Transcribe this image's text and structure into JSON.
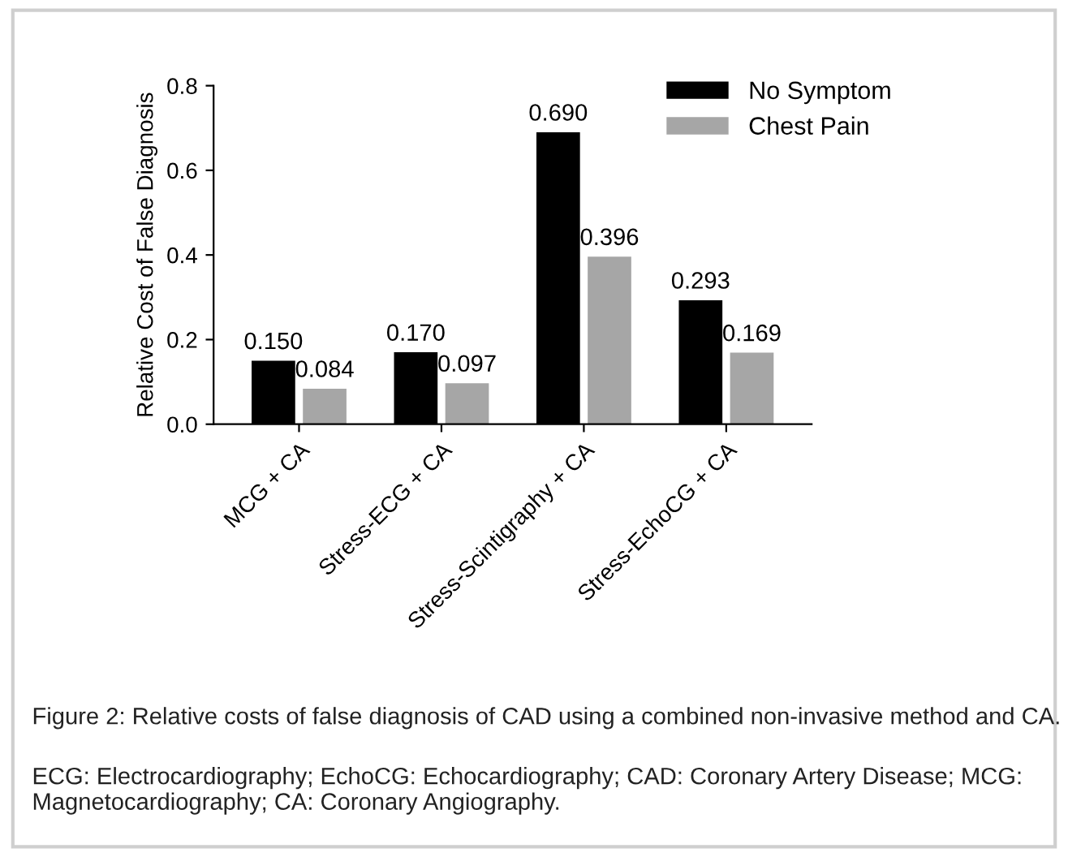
{
  "chart_data": {
    "type": "bar",
    "ylabel": "Relative Cost of False Diagnosis",
    "categories": [
      "MCG + CA",
      "Stress-ECG + CA",
      "Stress-Scintigraphy + CA",
      "Stress-EchoCG + CA"
    ],
    "series": [
      {
        "name": "No Symptom",
        "color": "#000000",
        "values": [
          0.15,
          0.17,
          0.69,
          0.293
        ],
        "value_labels": [
          "0.150",
          "0.170",
          "0.690",
          "0.293"
        ]
      },
      {
        "name": "Chest Pain",
        "color": "#a6a6a6",
        "values": [
          0.084,
          0.097,
          0.396,
          0.169
        ],
        "value_labels": [
          "0.084",
          "0.097",
          "0.396",
          "0.169"
        ]
      }
    ],
    "ylim": [
      0,
      0.8
    ],
    "yticks": [
      {
        "value": 0,
        "label": "0.0"
      },
      0.2,
      0.4,
      0.6,
      0.8
    ],
    "legend": "top right",
    "grid": false,
    "annotations": [
      "Figure 2: Relative costs of false diagnosis of CAD using a combined non-invasive method and CA.",
      "ECG: Electrocardiography; EchoCG: Echocardiography; CAD: Coronary Artery Disease; MCG: Magnetocardiography; CA: Coronary Angiography."
    ]
  }
}
